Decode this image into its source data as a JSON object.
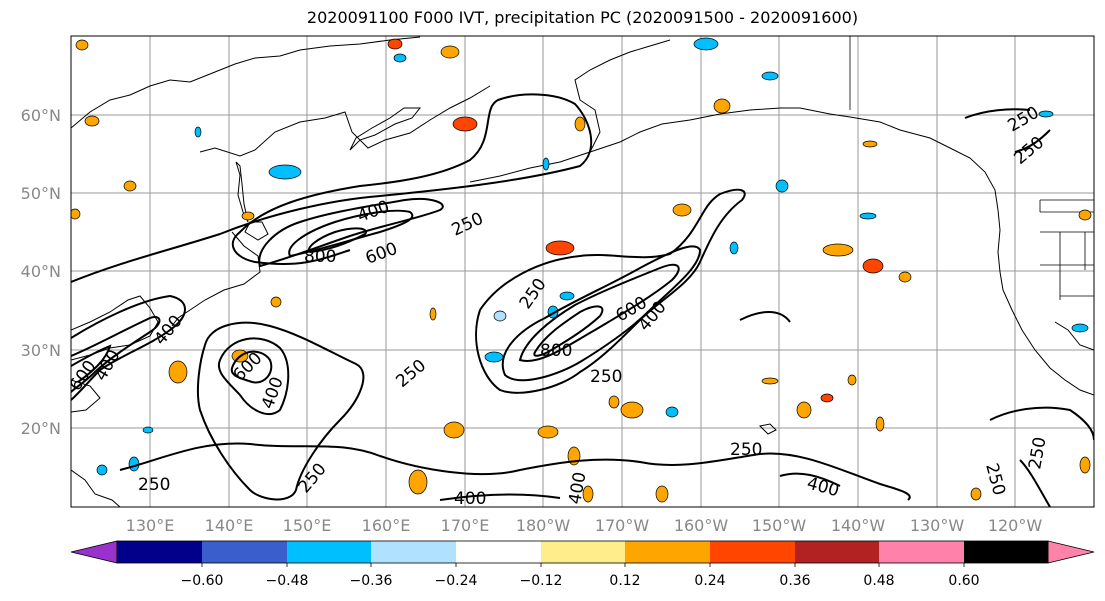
{
  "title": "2020091100 F000 IVT, precipitation PC (2020091500 - 2020091600)",
  "lat_labels": [
    "60°N",
    "50°N",
    "40°N",
    "30°N",
    "20°N"
  ],
  "lon_labels": [
    "130°E",
    "140°E",
    "150°E",
    "160°E",
    "170°E",
    "180°W",
    "170°W",
    "160°W",
    "150°W",
    "140°W",
    "130°W",
    "120°W"
  ],
  "contour_labels": [
    "250",
    "400",
    "600",
    "800"
  ],
  "colorbar": {
    "ticks": [
      "−0.60",
      "−0.48",
      "−0.36",
      "−0.24",
      "−0.12",
      "0.12",
      "0.24",
      "0.36",
      "0.48",
      "0.60"
    ],
    "colors": [
      "#9932cc",
      "#00008b",
      "#3a5fcd",
      "#00bfff",
      "#b0e2ff",
      "#ffffff",
      "#ffec8b",
      "#ffa500",
      "#ff4500",
      "#b22222",
      "#ff82ab"
    ]
  }
}
